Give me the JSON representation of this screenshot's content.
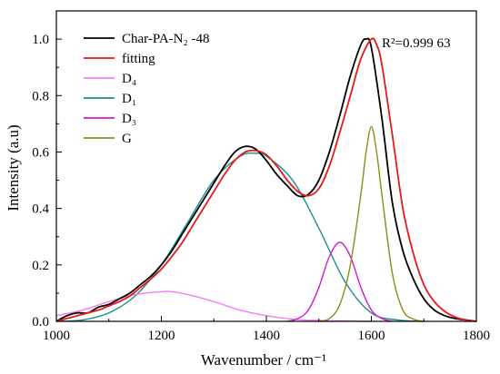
{
  "chart_data": {
    "type": "line",
    "xlabel": "Wavenumber / cm⁻¹",
    "ylabel": "Intensity (a.u)",
    "xlim": [
      1000,
      1800
    ],
    "ylim": [
      0,
      1.1
    ],
    "xticks": [
      1000,
      1200,
      1400,
      1600,
      1800
    ],
    "yticks": [
      0.0,
      0.2,
      0.4,
      0.6,
      0.8,
      1.0
    ],
    "xtick_labels": [
      "1000",
      "1200",
      "1400",
      "1600",
      "1800"
    ],
    "ytick_labels": [
      "0.0",
      "0.2",
      "0.4",
      "0.6",
      "0.8",
      "1.0"
    ],
    "legend_position": "top-left",
    "annotation": {
      "text": "R²=0.999 63"
    },
    "series": [
      {
        "name": "Char-PA-N₂ -48",
        "color": "#000000",
        "x": [
          1000,
          1020,
          1040,
          1060,
          1080,
          1100,
          1120,
          1140,
          1160,
          1180,
          1200,
          1220,
          1240,
          1260,
          1280,
          1300,
          1320,
          1340,
          1360,
          1380,
          1400,
          1420,
          1440,
          1460,
          1480,
          1500,
          1520,
          1540,
          1560,
          1580,
          1590,
          1600,
          1620,
          1640,
          1660,
          1680,
          1700,
          1720,
          1740,
          1760,
          1780,
          1800
        ],
        "values": [
          0.0,
          0.02,
          0.03,
          0.03,
          0.05,
          0.06,
          0.08,
          0.1,
          0.13,
          0.16,
          0.2,
          0.25,
          0.31,
          0.37,
          0.43,
          0.49,
          0.55,
          0.6,
          0.62,
          0.61,
          0.57,
          0.52,
          0.48,
          0.445,
          0.45,
          0.5,
          0.6,
          0.73,
          0.87,
          0.98,
          1.0,
          0.97,
          0.72,
          0.42,
          0.25,
          0.15,
          0.08,
          0.04,
          0.02,
          0.01,
          0.005,
          0.0
        ]
      },
      {
        "name": "fitting",
        "color": "#e8191b",
        "x": [
          1000,
          1020,
          1040,
          1060,
          1080,
          1100,
          1120,
          1140,
          1160,
          1180,
          1200,
          1220,
          1240,
          1260,
          1280,
          1300,
          1320,
          1340,
          1360,
          1380,
          1400,
          1420,
          1440,
          1460,
          1480,
          1500,
          1520,
          1540,
          1560,
          1580,
          1600,
          1610,
          1620,
          1640,
          1660,
          1680,
          1700,
          1720,
          1740,
          1760,
          1780,
          1800
        ],
        "values": [
          0.0,
          0.01,
          0.02,
          0.03,
          0.04,
          0.055,
          0.07,
          0.09,
          0.12,
          0.15,
          0.185,
          0.23,
          0.28,
          0.34,
          0.4,
          0.46,
          0.52,
          0.57,
          0.6,
          0.605,
          0.59,
          0.55,
          0.5,
          0.46,
          0.445,
          0.47,
          0.55,
          0.67,
          0.8,
          0.93,
          1.0,
          0.98,
          0.91,
          0.66,
          0.4,
          0.24,
          0.13,
          0.07,
          0.035,
          0.015,
          0.005,
          0.0
        ]
      },
      {
        "name": "D₄",
        "color": "#f47cf4",
        "x": [
          1000,
          1050,
          1100,
          1150,
          1200,
          1220,
          1250,
          1300,
          1350,
          1400,
          1450,
          1500,
          1550,
          1600
        ],
        "values": [
          0.02,
          0.04,
          0.07,
          0.095,
          0.105,
          0.105,
          0.095,
          0.07,
          0.04,
          0.02,
          0.008,
          0.003,
          0.001,
          0.0
        ]
      },
      {
        "name": "D₁",
        "color": "#1a8f8f",
        "x": [
          1000,
          1050,
          1100,
          1150,
          1200,
          1250,
          1300,
          1350,
          1380,
          1400,
          1450,
          1500,
          1550,
          1600,
          1650,
          1700
        ],
        "values": [
          0.0,
          0.005,
          0.03,
          0.09,
          0.2,
          0.35,
          0.5,
          0.585,
          0.595,
          0.585,
          0.5,
          0.33,
          0.14,
          0.03,
          0.005,
          0.0
        ]
      },
      {
        "name": "D₃",
        "color": "#d319d3",
        "x": [
          1440,
          1460,
          1480,
          1500,
          1520,
          1540,
          1560,
          1580,
          1600,
          1620,
          1640
        ],
        "values": [
          0.0,
          0.01,
          0.04,
          0.12,
          0.23,
          0.28,
          0.23,
          0.12,
          0.04,
          0.01,
          0.0
        ]
      },
      {
        "name": "G",
        "color": "#8c8c1a",
        "x": [
          1500,
          1520,
          1540,
          1560,
          1580,
          1590,
          1600,
          1610,
          1620,
          1640,
          1660,
          1680,
          1700
        ],
        "values": [
          0.0,
          0.01,
          0.06,
          0.2,
          0.45,
          0.6,
          0.69,
          0.6,
          0.45,
          0.17,
          0.04,
          0.008,
          0.0
        ]
      }
    ]
  }
}
